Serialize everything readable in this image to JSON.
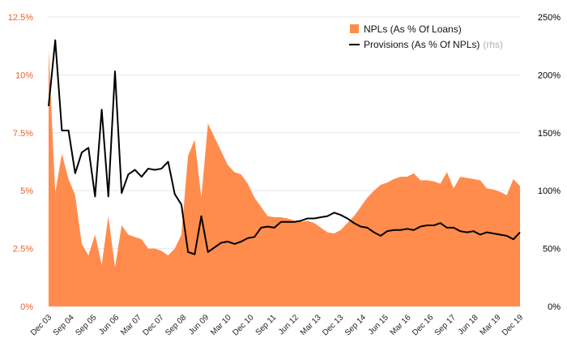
{
  "chart_data": {
    "type": "area",
    "title": "",
    "xlabel": "",
    "ylabel_left": "",
    "ylabel_right": "",
    "ylim_left": [
      0,
      12.5
    ],
    "ylim_right": [
      0,
      250
    ],
    "left_ticks": [
      "0%",
      "2.5%",
      "5%",
      "7.5%",
      "10%",
      "12.5%"
    ],
    "right_ticks": [
      "0%",
      "50%",
      "100%",
      "150%",
      "200%",
      "250%"
    ],
    "x_tick_labels": [
      "Dec 03",
      "Sep 04",
      "Sep 05",
      "Jun 06",
      "Mar 07",
      "Dec 07",
      "Sep 08",
      "Jun 09",
      "Mar 10",
      "Dec 10",
      "Sep 11",
      "Jun 12",
      "Mar 13",
      "Dec 13",
      "Sep 14",
      "Jun 15",
      "Mar 16",
      "Dec 16",
      "Sep 17",
      "Jun 18",
      "Mar 19",
      "Dec 19"
    ],
    "legend": {
      "position": "top-right",
      "npl_label": "NPLs (As % Of Loans)",
      "prov_label": "Provisions (As % Of NPLs)",
      "prov_suffix": "(rhs)"
    },
    "colors": {
      "npl": "#ff8c4d",
      "provisions": "#000000",
      "left_axis": "#e8622a"
    },
    "series": [
      {
        "name": "NPLs (As % Of Loans)",
        "axis": "left",
        "type": "area",
        "values": [
          11.1,
          4.9,
          6.6,
          5.5,
          4.8,
          2.7,
          2.2,
          3.1,
          1.8,
          3.9,
          1.7,
          3.5,
          3.1,
          3.0,
          2.9,
          2.5,
          2.5,
          2.4,
          2.2,
          2.5,
          3.1,
          6.5,
          7.2,
          4.7,
          7.9,
          7.3,
          6.7,
          6.1,
          5.8,
          5.7,
          5.3,
          4.7,
          4.3,
          3.9,
          3.85,
          3.85,
          3.8,
          3.7,
          3.65,
          3.7,
          3.6,
          3.4,
          3.2,
          3.15,
          3.3,
          3.6,
          3.9,
          4.3,
          4.7,
          5.0,
          5.25,
          5.35,
          5.5,
          5.6,
          5.6,
          5.75,
          5.45,
          5.45,
          5.4,
          5.3,
          5.8,
          5.1,
          5.6,
          5.55,
          5.5,
          5.45,
          5.1,
          5.05,
          4.95,
          4.8,
          5.5,
          5.2
        ]
      },
      {
        "name": "Provisions (As % Of NPLs)",
        "axis": "right",
        "type": "line",
        "values": [
          173,
          230,
          152,
          152,
          115,
          133,
          137,
          95,
          170,
          95,
          203,
          98,
          114,
          118,
          112,
          119,
          118,
          119,
          125,
          97,
          88,
          47,
          45,
          78,
          47,
          51,
          55,
          56,
          54,
          56,
          59,
          60,
          68,
          69,
          68,
          73,
          73,
          73,
          74,
          76,
          76,
          77,
          78,
          81,
          79,
          76,
          72,
          69,
          68,
          64,
          61,
          65,
          66,
          66,
          67,
          66,
          69,
          70,
          70,
          72,
          68,
          68,
          65,
          64,
          65,
          62,
          64,
          63,
          62,
          61,
          58,
          64
        ]
      }
    ]
  }
}
